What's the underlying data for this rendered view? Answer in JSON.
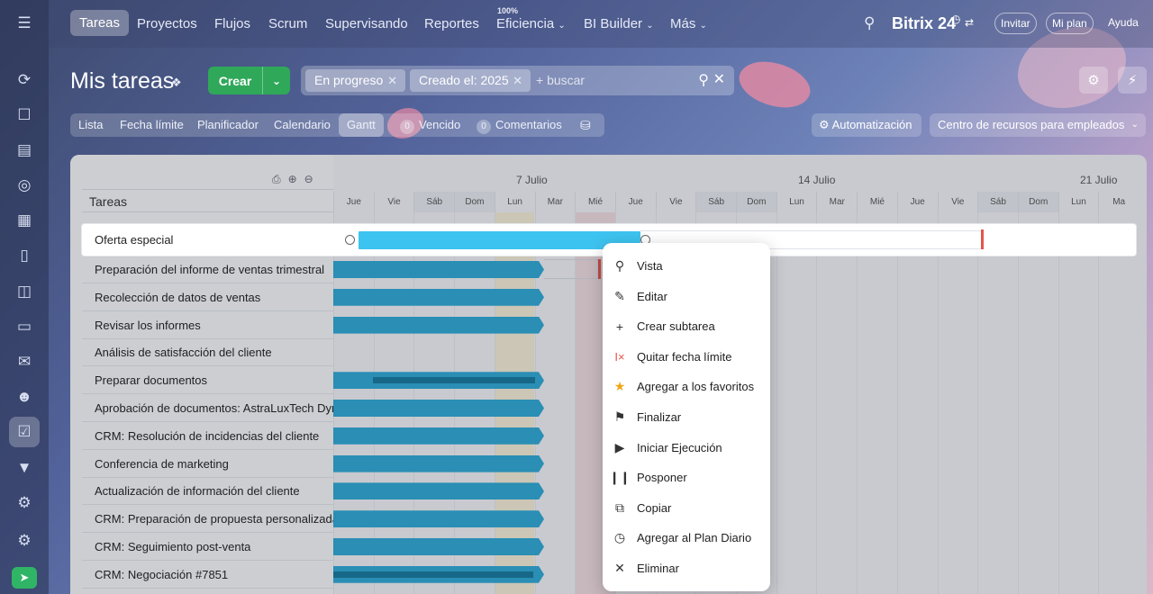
{
  "topnav": {
    "items": [
      "Tareas",
      "Proyectos",
      "Flujos",
      "Scrum",
      "Supervisando",
      "Reportes",
      "Eficiencia",
      "BI Builder",
      "Más"
    ],
    "efficiency_badge": "100%",
    "brand": "Bitrix 24",
    "invite": "Invitar",
    "my_plan": "Mi plan",
    "help": "Ayuda"
  },
  "header": {
    "title": "Mis tareas",
    "create_label": "Crear",
    "filters": [
      "En progreso",
      "Creado el: 2025"
    ],
    "search_placeholder": "+ buscar"
  },
  "views": {
    "tabs": [
      "Lista",
      "Fecha límite",
      "Planificador",
      "Calendario",
      "Gantt"
    ],
    "active": "Gantt",
    "overdue_count": "0",
    "overdue_label": "Vencido",
    "comments_count": "0",
    "comments_label": "Comentarios",
    "automation_label": "Automatización",
    "resources_label": "Centro de recursos para empleados"
  },
  "gantt": {
    "column_header": "Tareas",
    "weeks": [
      "7 Julio",
      "14 Julio",
      "21 Julio"
    ],
    "days": [
      "Jue",
      "Vie",
      "Sáb",
      "Dom",
      "Lun",
      "Mar",
      "Mié",
      "Jue",
      "Vie",
      "Sáb",
      "Dom",
      "Lun",
      "Mar",
      "Mié",
      "Jue",
      "Vie",
      "Sáb",
      "Dom",
      "Lun",
      "Ma"
    ],
    "selected_task": "Oferta especial",
    "tasks": [
      "Preparación del informe de ventas trimestral",
      "Recolección de datos de ventas",
      "Revisar los informes",
      "Análisis de satisfacción del cliente",
      "Preparar documentos",
      "Aprobación de documentos: AstraLuxTech Dynamics",
      "CRM: Resolución de incidencias del cliente",
      "Conferencia de marketing",
      "Actualización de información del cliente",
      "CRM: Preparación de propuesta personalizada",
      "CRM: Seguimiento post-venta",
      "CRM: Negociación #7851"
    ]
  },
  "context_menu": {
    "items": [
      {
        "label": "Vista",
        "icon": "search-icon"
      },
      {
        "label": "Editar",
        "icon": "pencil-icon"
      },
      {
        "label": "Crear subtarea",
        "icon": "plus-icon"
      },
      {
        "label": "Quitar fecha límite",
        "icon": "remove-deadline-icon"
      },
      {
        "label": "Agregar a los favoritos",
        "icon": "star-icon"
      },
      {
        "label": "Finalizar",
        "icon": "flag-icon"
      },
      {
        "label": "Iniciar Ejecución",
        "icon": "play-icon"
      },
      {
        "label": "Posponer",
        "icon": "pause-icon"
      },
      {
        "label": "Copiar",
        "icon": "copy-icon"
      },
      {
        "label": "Agregar al Plan Diario",
        "icon": "clock-icon"
      },
      {
        "label": "Eliminar",
        "icon": "close-icon"
      }
    ]
  },
  "colors": {
    "accent_green": "#2fa85a",
    "bar_blue": "#2ea7d3",
    "selected_bar": "#3dc3ef",
    "deadline_red": "#e4544a"
  }
}
